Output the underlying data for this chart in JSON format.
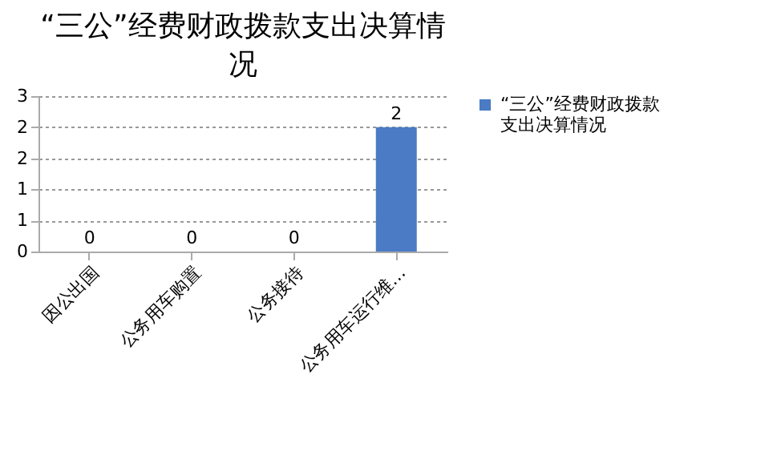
{
  "chart_data": {
    "type": "bar",
    "title": "“三公”经费财政拨款支出决算情况",
    "categories": [
      "因公出国",
      "公务用车购置",
      "公务接待",
      "公务用车运行维…"
    ],
    "series": [
      {
        "name": "“三公”经费财政拨款支出决算情况",
        "color": "#4a7bc4",
        "values": [
          0,
          0,
          0,
          2
        ]
      }
    ],
    "ylim": [
      0,
      2.5
    ],
    "yticks": [
      0,
      {
        "value": 0.5,
        "label": "1"
      },
      1,
      {
        "value": 1.5,
        "label": "2"
      },
      2,
      {
        "value": 2.5,
        "label": "3"
      }
    ],
    "grid": "y",
    "legend": "right",
    "data_labels": true
  }
}
